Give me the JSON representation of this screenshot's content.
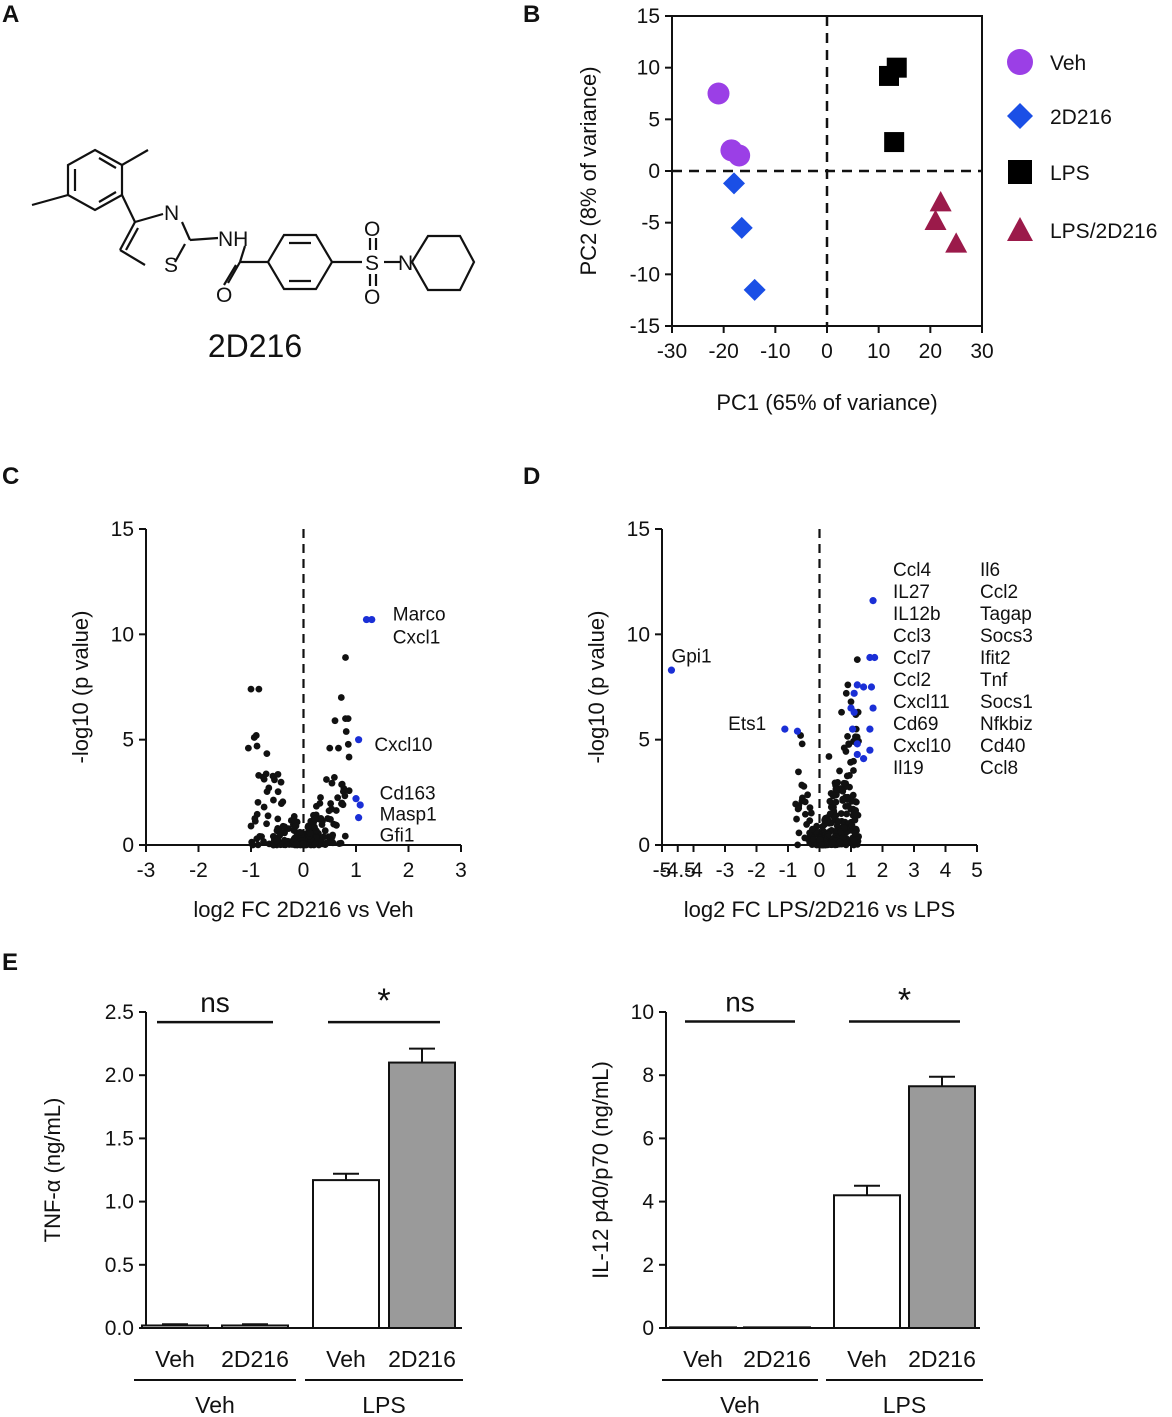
{
  "panels": {
    "A": "A",
    "B": "B",
    "C": "C",
    "D": "D",
    "E": "E"
  },
  "molecule": {
    "name": "2D216",
    "atoms": {
      "N": "N",
      "S": "S",
      "NH": "NH",
      "O": "O",
      "O_top": "O",
      "O_bot": "O",
      "N_pip": "N",
      "S_sulf": "S"
    }
  },
  "colors": {
    "veh": "#9b3fe6",
    "d2d216": "#1a4fe6",
    "lps": "#000000",
    "lps2d216": "#9b1a4a",
    "sig": "#1a2fd6",
    "ns": "#000000",
    "bar_gray": "#9a9a9a"
  },
  "chart_data": [
    {
      "id": "B",
      "type": "scatter",
      "xlabel": "PC1 (65% of variance)",
      "ylabel": "PC2  (8% of variance)",
      "xlim": [
        -30,
        30
      ],
      "ylim": [
        -15,
        15
      ],
      "xticks": [
        -30,
        -20,
        -10,
        0,
        10,
        20,
        30
      ],
      "yticks": [
        15,
        10,
        5,
        0,
        -5,
        -10,
        -15
      ],
      "series": [
        {
          "name": "Veh",
          "marker": "circle",
          "points": [
            [
              -21,
              7.5
            ],
            [
              -18.5,
              2
            ],
            [
              -17,
              1.5
            ]
          ]
        },
        {
          "name": "2D216",
          "marker": "diamond",
          "points": [
            [
              -18,
              -1.2
            ],
            [
              -16.5,
              -5.5
            ],
            [
              -14,
              -11.5
            ]
          ]
        },
        {
          "name": "LPS",
          "marker": "square",
          "points": [
            [
              12,
              9.2
            ],
            [
              13.5,
              10
            ],
            [
              13,
              2.8
            ]
          ]
        },
        {
          "name": "LPS/2D216",
          "marker": "triangle",
          "points": [
            [
              22,
              -3
            ],
            [
              21,
              -4.8
            ],
            [
              25,
              -7
            ]
          ]
        }
      ]
    },
    {
      "id": "C",
      "type": "scatter",
      "xlabel": "log2 FC 2D216 vs Veh",
      "ylabel": "-log10 (p value)",
      "xlim": [
        -3,
        3
      ],
      "ylim": [
        0,
        15
      ],
      "xticks": [
        -3,
        -2,
        -1,
        0,
        1,
        2,
        3
      ],
      "yticks": [
        15,
        10,
        5,
        0
      ],
      "highlight": [
        [
          1.2,
          10.7
        ],
        [
          1.3,
          10.7
        ],
        [
          1.05,
          5.0
        ],
        [
          1.0,
          2.2
        ],
        [
          1.08,
          1.9
        ],
        [
          1.05,
          1.3
        ]
      ],
      "labels": [
        {
          "text": "Marco",
          "x": 1.7,
          "y": 11.0
        },
        {
          "text": "Cxcl1",
          "x": 1.7,
          "y": 9.9
        },
        {
          "text": "Cxcl10",
          "x": 1.35,
          "y": 4.8
        },
        {
          "text": "Cd163",
          "x": 1.45,
          "y": 2.5
        },
        {
          "text": "Masp1",
          "x": 1.45,
          "y": 1.5
        },
        {
          "text": "Gfi1",
          "x": 1.45,
          "y": 0.5
        }
      ]
    },
    {
      "id": "D",
      "type": "scatter",
      "xlabel": "log2 FC LPS/2D216 vs LPS",
      "ylabel": "-log10 (p value)",
      "xlim": [
        -5,
        5
      ],
      "ylim": [
        0,
        15
      ],
      "xticks": [
        -5,
        -4.5,
        -4,
        -3,
        -2,
        -1,
        0,
        1,
        2,
        3,
        4,
        5
      ],
      "xtick_labels": [
        "-5",
        "-4.5",
        "-4",
        "-3",
        "-2",
        "-1",
        "0",
        "1",
        "2",
        "3",
        "4",
        "5"
      ],
      "yticks": [
        15,
        10,
        5,
        0
      ],
      "highlight": [
        [
          -4.7,
          8.3
        ],
        [
          -1.1,
          5.5
        ],
        [
          -0.7,
          5.4
        ],
        [
          1.7,
          11.6
        ],
        [
          1.6,
          8.9
        ],
        [
          1.75,
          8.9
        ],
        [
          1.2,
          7.6
        ],
        [
          1.4,
          7.5
        ],
        [
          1.65,
          7.5
        ],
        [
          1.1,
          7.2
        ],
        [
          1.0,
          6.5
        ],
        [
          1.7,
          6.5
        ],
        [
          1.1,
          6.3
        ],
        [
          1.05,
          5.5
        ],
        [
          1.6,
          5.5
        ],
        [
          1.2,
          4.8
        ],
        [
          1.6,
          4.5
        ],
        [
          1.2,
          4.3
        ],
        [
          1.4,
          4.1
        ]
      ],
      "labels": {
        "left": [
          {
            "text": "Gpi1",
            "x": -4.7,
            "y": 9.0
          },
          {
            "text": "Ets1",
            "x": -2.9,
            "y": 5.8
          }
        ],
        "col1": [
          "Ccl4",
          "IL27",
          "IL12b",
          "Ccl3",
          "Ccl7",
          "Ccl2",
          "Cxcl11",
          "Cd69",
          "Cxcl10",
          "Il19"
        ],
        "col2": [
          "Il6",
          "Ccl2",
          "Tagap",
          "Socs3",
          "Ifit2",
          "Tnf",
          "Socs1",
          "Nfkbiz",
          "Cd40",
          "Ccl8"
        ]
      }
    },
    {
      "id": "E1",
      "type": "bar",
      "ylabel": "TNF-α (ng/mL)",
      "ylim": [
        0,
        2.5
      ],
      "yticks": [
        0.0,
        0.5,
        1.0,
        1.5,
        2.0,
        2.5
      ],
      "ytick_labels": [
        "0.0",
        "0.5",
        "1.0",
        "1.5",
        "2.0",
        "2.5"
      ],
      "categories": [
        "Veh",
        "2D216",
        "Veh",
        "2D216"
      ],
      "values": [
        0.02,
        0.02,
        1.17,
        2.1
      ],
      "errors": [
        0.01,
        0.01,
        0.05,
        0.11
      ],
      "groups": [
        {
          "label": "Veh",
          "span": [
            0,
            1
          ]
        },
        {
          "label": "LPS",
          "span": [
            2,
            3
          ]
        }
      ],
      "significance": [
        {
          "label": "ns",
          "span": [
            0,
            1
          ],
          "y": 2.42
        },
        {
          "label": "*",
          "span": [
            2,
            3
          ],
          "y": 2.42
        }
      ]
    },
    {
      "id": "E2",
      "type": "bar",
      "ylabel": "IL-12 p40/p70 (ng/mL)",
      "ylim": [
        0,
        10
      ],
      "yticks": [
        0,
        2,
        4,
        6,
        8,
        10
      ],
      "ytick_labels": [
        "0",
        "2",
        "4",
        "6",
        "8",
        "10"
      ],
      "categories": [
        "Veh",
        "2D216",
        "Veh",
        "2D216"
      ],
      "values": [
        0.02,
        0.02,
        4.2,
        7.65
      ],
      "errors": [
        0.0,
        0.0,
        0.3,
        0.3
      ],
      "groups": [
        {
          "label": "Veh",
          "span": [
            0,
            1
          ]
        },
        {
          "label": "LPS",
          "span": [
            2,
            3
          ]
        }
      ],
      "significance": [
        {
          "label": "ns",
          "span": [
            0,
            1
          ],
          "y": 9.7
        },
        {
          "label": "*",
          "span": [
            2,
            3
          ],
          "y": 9.7
        }
      ]
    }
  ]
}
